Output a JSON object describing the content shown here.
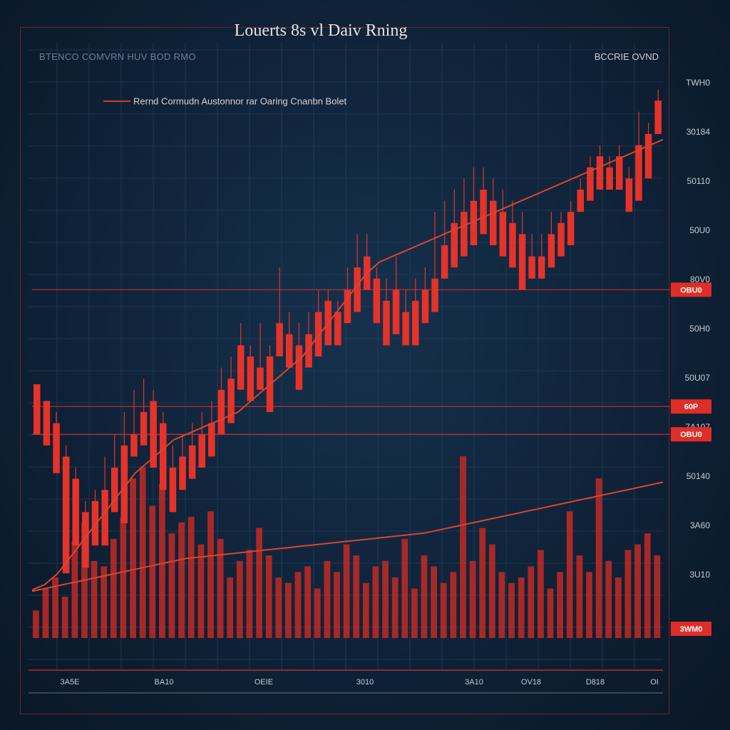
{
  "title": "Louerts 8s vl Daiv Rning",
  "subtitle_left": "BTENCO COMVRN HUV BOD RMO",
  "subtitle_right": "BCCRIE OVND",
  "legend_label": "Rernd Cormudn Austonnor rar Oaring Cnanbn Bolet",
  "colors": {
    "background": "#0f2238",
    "candle": "#e5332a",
    "volume": "#c22a25",
    "moving_average": "#d9452f",
    "price_tag": "#e02d27",
    "grid": "#22405e"
  },
  "chart_data": {
    "type": "candlestick",
    "title": "Louerts 8s vl Daiv Rning",
    "ylabels": [
      "TWH0",
      "30184",
      "50110",
      "50U0",
      "80V0",
      "50H0",
      "50U07",
      "7A107",
      "50140",
      "3A60",
      "3U10"
    ],
    "xlabels": [
      "3A5E",
      "BA10",
      "OEIE",
      "3010",
      "3A10",
      "OV18",
      "D818",
      "OI"
    ],
    "price_tags": [
      {
        "label": "OBU0",
        "price": 62
      },
      {
        "label": "60P",
        "price": 41
      },
      {
        "label": "OBU0",
        "price": 36
      },
      {
        "label": "3WM0",
        "price": 0
      }
    ],
    "horizontal_levels": [
      62,
      41,
      36
    ],
    "ylim": [
      0,
      100
    ],
    "ohlc": [
      [
        45,
        45,
        42,
        36
      ],
      [
        42,
        42,
        35,
        34
      ],
      [
        38,
        40,
        30,
        29
      ],
      [
        32,
        34,
        12,
        11
      ],
      [
        28,
        30,
        18,
        16
      ],
      [
        22,
        24,
        14,
        12
      ],
      [
        24,
        26,
        18,
        16
      ],
      [
        26,
        32,
        18,
        16
      ],
      [
        30,
        36,
        24,
        22
      ],
      [
        34,
        40,
        22,
        20
      ],
      [
        36,
        44,
        34,
        32
      ],
      [
        40,
        46,
        36,
        34
      ],
      [
        42,
        44,
        32,
        30
      ],
      [
        38,
        40,
        28,
        26
      ],
      [
        30,
        34,
        24,
        22
      ],
      [
        32,
        36,
        28,
        26
      ],
      [
        34,
        38,
        30,
        28
      ],
      [
        36,
        40,
        32,
        30
      ],
      [
        38,
        42,
        34,
        32
      ],
      [
        44,
        48,
        38,
        36
      ],
      [
        46,
        50,
        40,
        38
      ],
      [
        52,
        56,
        46,
        44
      ],
      [
        50,
        52,
        44,
        42
      ],
      [
        48,
        56,
        46,
        44
      ],
      [
        50,
        52,
        42,
        40
      ],
      [
        56,
        66,
        52,
        50
      ],
      [
        54,
        58,
        50,
        48
      ],
      [
        52,
        56,
        46,
        44
      ],
      [
        54,
        58,
        50,
        48
      ],
      [
        58,
        62,
        52,
        50
      ],
      [
        60,
        62,
        54,
        52
      ],
      [
        58,
        60,
        54,
        52
      ],
      [
        62,
        66,
        58,
        56
      ],
      [
        66,
        72,
        60,
        58
      ],
      [
        68,
        72,
        64,
        62
      ],
      [
        64,
        66,
        58,
        56
      ],
      [
        60,
        64,
        54,
        52
      ],
      [
        62,
        68,
        56,
        54
      ],
      [
        58,
        62,
        54,
        52
      ],
      [
        60,
        64,
        54,
        52
      ],
      [
        62,
        66,
        58,
        56
      ],
      [
        64,
        76,
        60,
        58
      ],
      [
        70,
        78,
        66,
        64
      ],
      [
        74,
        80,
        68,
        66
      ],
      [
        76,
        82,
        70,
        68
      ],
      [
        78,
        84,
        72,
        70
      ],
      [
        80,
        84,
        74,
        72
      ],
      [
        78,
        82,
        72,
        70
      ],
      [
        76,
        80,
        70,
        68
      ],
      [
        74,
        78,
        68,
        66
      ],
      [
        72,
        76,
        64,
        62
      ],
      [
        68,
        72,
        66,
        64
      ],
      [
        68,
        72,
        66,
        64
      ],
      [
        72,
        76,
        68,
        66
      ],
      [
        74,
        76,
        70,
        68
      ],
      [
        76,
        78,
        72,
        70
      ],
      [
        80,
        82,
        78,
        76
      ],
      [
        84,
        86,
        80,
        78
      ],
      [
        86,
        88,
        82,
        80
      ],
      [
        84,
        86,
        82,
        80
      ],
      [
        86,
        88,
        82,
        80
      ],
      [
        82,
        84,
        78,
        76
      ],
      [
        88,
        94,
        80,
        78
      ],
      [
        90,
        92,
        84,
        82
      ],
      [
        96,
        98,
        92,
        90
      ]
    ],
    "volume": [
      10,
      18,
      22,
      15,
      35,
      42,
      28,
      26,
      36,
      44,
      58,
      62,
      48,
      56,
      38,
      42,
      44,
      34,
      46,
      36,
      22,
      28,
      32,
      40,
      30,
      22,
      20,
      24,
      26,
      18,
      28,
      24,
      34,
      30,
      20,
      26,
      28,
      22,
      36,
      18,
      30,
      26,
      20,
      24,
      66,
      28,
      40,
      34,
      24,
      20,
      22,
      26,
      32,
      18,
      24,
      46,
      30,
      24,
      58,
      28,
      22,
      32,
      34,
      38,
      30
    ],
    "moving_average": [
      8,
      9,
      11,
      14,
      17,
      20,
      23,
      26,
      29,
      31,
      33,
      35,
      36,
      37,
      38,
      39,
      40,
      42,
      44,
      46,
      48,
      50,
      53,
      56,
      59,
      62,
      65,
      67,
      68,
      69,
      70,
      71,
      72,
      73,
      74,
      75,
      76,
      77,
      78,
      79,
      80,
      81,
      82,
      83,
      84,
      85,
      86,
      87,
      88,
      89
    ],
    "volume_average": [
      12,
      14,
      16,
      18,
      20,
      22,
      24,
      26,
      28,
      30,
      31,
      32,
      33,
      34,
      35,
      36,
      37,
      38,
      39,
      40,
      41,
      42,
      43,
      44,
      46,
      48,
      50,
      52,
      54,
      56,
      58,
      60,
      62,
      64,
      66,
      68,
      70,
      72
    ]
  }
}
